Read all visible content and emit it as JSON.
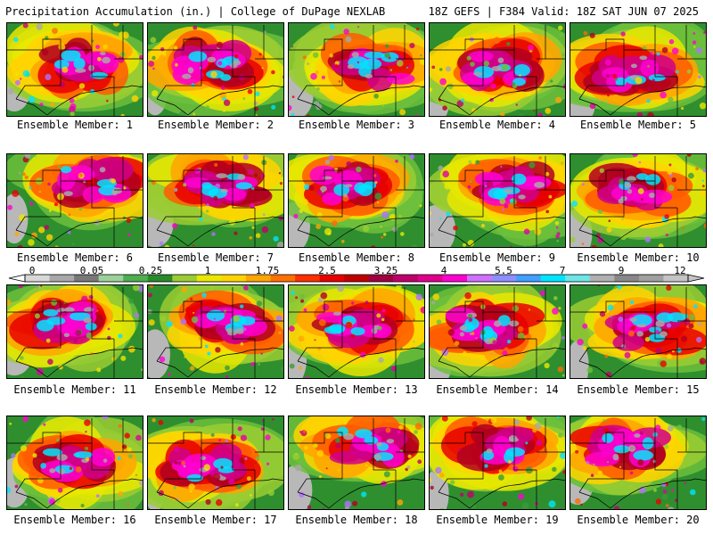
{
  "header": {
    "left": "Precipitation Accumulation (in.) | College of DuPage NEXLAB",
    "right": "18Z GEFS | F384 Valid: 18Z SAT JUN 07 2025"
  },
  "colorbar": {
    "labels": [
      "0",
      "0.05",
      "0.25",
      "1",
      "1.75",
      "2.5",
      "3.25",
      "4",
      "5.5",
      "7",
      "9",
      "12"
    ],
    "colors": [
      "#d8d8d8",
      "#a8a8a8",
      "#787878",
      "#9bd29b",
      "#4fae4f",
      "#2a8a2a",
      "#9acd32",
      "#e8e800",
      "#ffd400",
      "#ffa500",
      "#ff7000",
      "#ff3000",
      "#e80000",
      "#c00000",
      "#a00040",
      "#c0006a",
      "#e0008c",
      "#ff00d0",
      "#d070ff",
      "#8e8eff",
      "#40a0ff",
      "#00e5ff",
      "#6ee6e6",
      "#b0b0b0",
      "#888888",
      "#a0a0a0",
      "#c4c4c4"
    ]
  },
  "panels": [
    {
      "label": "Ensemble Member: 1"
    },
    {
      "label": "Ensemble Member: 2"
    },
    {
      "label": "Ensemble Member: 3"
    },
    {
      "label": "Ensemble Member: 4"
    },
    {
      "label": "Ensemble Member: 5"
    },
    {
      "label": "Ensemble Member: 6"
    },
    {
      "label": "Ensemble Member: 7"
    },
    {
      "label": "Ensemble Member: 8"
    },
    {
      "label": "Ensemble Member: 9"
    },
    {
      "label": "Ensemble Member: 10"
    },
    {
      "label": "Ensemble Member: 11"
    },
    {
      "label": "Ensemble Member: 12"
    },
    {
      "label": "Ensemble Member: 13"
    },
    {
      "label": "Ensemble Member: 14"
    },
    {
      "label": "Ensemble Member: 15"
    },
    {
      "label": "Ensemble Member: 16"
    },
    {
      "label": "Ensemble Member: 17"
    },
    {
      "label": "Ensemble Member: 18"
    },
    {
      "label": "Ensemble Member: 19"
    },
    {
      "label": "Ensemble Member: 20"
    }
  ]
}
